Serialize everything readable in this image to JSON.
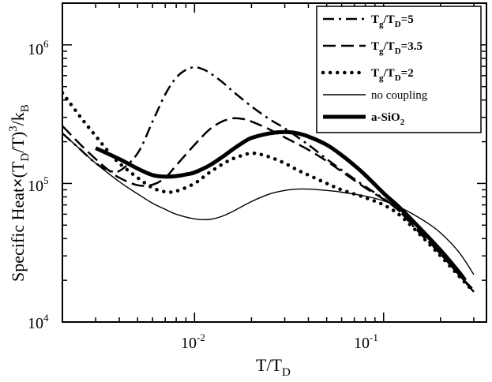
{
  "chart_data": {
    "type": "line",
    "x_scale": "log",
    "y_scale": "log",
    "xlim": [
      0.002,
      0.35
    ],
    "ylim": [
      10000,
      2000000
    ],
    "xlabel": {
      "base": "T/T",
      "sub": "D"
    },
    "ylabel": {
      "part1": "Specific Heat",
      "times": "×",
      "part2": "(T",
      "sub1": "D",
      "part3": "/T)",
      "sup": "3",
      "part4": "/k",
      "sub2": "B"
    },
    "x_ticks": [
      {
        "value": 0.01,
        "base": "10",
        "exp": "-2"
      },
      {
        "value": 0.1,
        "base": "10",
        "exp": "-1"
      }
    ],
    "y_ticks": [
      {
        "value": 10000,
        "base": "10",
        "exp": "4"
      },
      {
        "value": 100000,
        "base": "10",
        "exp": "5"
      },
      {
        "value": 1000000,
        "base": "10",
        "exp": "6"
      }
    ],
    "legend_position": "top-right",
    "series": [
      {
        "key": "tg5",
        "label": {
          "pre": "T",
          "sub1": "g",
          "mid": "/T",
          "sub2": "D",
          "post": "=5"
        },
        "bold_label": true,
        "style": "dashdot",
        "x": [
          0.002,
          0.0025,
          0.003,
          0.0035,
          0.004,
          0.005,
          0.006,
          0.007,
          0.008,
          0.009,
          0.01,
          0.011,
          0.012,
          0.014,
          0.016,
          0.02,
          0.025,
          0.03,
          0.04,
          0.05,
          0.06,
          0.08,
          0.1,
          0.12,
          0.15,
          0.2,
          0.25,
          0.3
        ],
        "y": [
          230000,
          175000,
          140000,
          125000,
          123000,
          165000,
          280000,
          440000,
          580000,
          660000,
          690000,
          670000,
          630000,
          540000,
          460000,
          360000,
          290000,
          250000,
          190000,
          150000,
          125000,
          95000,
          78000,
          64000,
          46000,
          31000,
          22000,
          17000
        ]
      },
      {
        "key": "tg35",
        "label": {
          "pre": "T",
          "sub1": "g",
          "mid": "/T",
          "sub2": "D",
          "post": "=3.5"
        },
        "bold_label": true,
        "style": "dashed",
        "x": [
          0.002,
          0.0025,
          0.003,
          0.0035,
          0.004,
          0.005,
          0.006,
          0.007,
          0.008,
          0.01,
          0.012,
          0.014,
          0.016,
          0.018,
          0.02,
          0.025,
          0.03,
          0.04,
          0.05,
          0.06,
          0.08,
          0.1,
          0.12,
          0.15,
          0.2,
          0.25,
          0.3
        ],
        "y": [
          260000,
          190000,
          150000,
          125000,
          110000,
          97000,
          98000,
          110000,
          135000,
          190000,
          245000,
          280000,
          295000,
          292000,
          280000,
          245000,
          215000,
          175000,
          145000,
          122000,
          93000,
          77000,
          64000,
          47000,
          31000,
          22000,
          16500
        ]
      },
      {
        "key": "tg2",
        "label": {
          "pre": "T",
          "sub1": "g",
          "mid": "/T",
          "sub2": "D",
          "post": "=2"
        },
        "bold_label": true,
        "style": "dotted",
        "x": [
          0.002,
          0.0025,
          0.003,
          0.0035,
          0.004,
          0.005,
          0.006,
          0.007,
          0.008,
          0.01,
          0.012,
          0.015,
          0.018,
          0.02,
          0.022,
          0.025,
          0.03,
          0.035,
          0.04,
          0.05,
          0.06,
          0.08,
          0.1,
          0.12,
          0.15,
          0.2,
          0.25,
          0.3
        ],
        "y": [
          450000,
          300000,
          220000,
          170000,
          140000,
          110000,
          93000,
          87000,
          88000,
          100000,
          120000,
          145000,
          160000,
          165000,
          163000,
          155000,
          140000,
          125000,
          115000,
          100000,
          90000,
          79000,
          70000,
          60000,
          45000,
          30000,
          21500,
          16500
        ]
      },
      {
        "key": "nocoupling",
        "label": {
          "text": "no coupling"
        },
        "bold_label": false,
        "style": "thin",
        "x": [
          0.002,
          0.0025,
          0.003,
          0.004,
          0.005,
          0.006,
          0.007,
          0.008,
          0.01,
          0.012,
          0.014,
          0.016,
          0.02,
          0.025,
          0.03,
          0.035,
          0.04,
          0.05,
          0.06,
          0.08,
          0.1,
          0.12,
          0.14,
          0.17,
          0.2,
          0.25,
          0.3
        ],
        "y": [
          230000,
          175000,
          140000,
          103000,
          84000,
          72000,
          65000,
          60000,
          55500,
          55000,
          58000,
          63000,
          74000,
          84000,
          89000,
          91000,
          91000,
          89000,
          86500,
          81000,
          75000,
          68000,
          61000,
          52000,
          44000,
          32000,
          22000
        ]
      },
      {
        "key": "asio2",
        "label": {
          "pre": "a-SiO",
          "sub1": "2"
        },
        "bold_label": true,
        "style": "thick",
        "x": [
          0.003,
          0.004,
          0.005,
          0.006,
          0.007,
          0.008,
          0.009,
          0.01,
          0.012,
          0.014,
          0.016,
          0.018,
          0.02,
          0.025,
          0.03,
          0.035,
          0.04,
          0.05,
          0.06,
          0.07,
          0.08,
          0.1,
          0.12,
          0.15,
          0.2,
          0.25,
          0.27
        ],
        "y": [
          180000,
          150000,
          128000,
          115000,
          112000,
          113000,
          116000,
          120000,
          135000,
          155000,
          177000,
          197000,
          213000,
          230000,
          235000,
          230000,
          218000,
          190000,
          160000,
          135000,
          115000,
          85000,
          68000,
          50000,
          33000,
          23000,
          20000
        ]
      }
    ]
  }
}
